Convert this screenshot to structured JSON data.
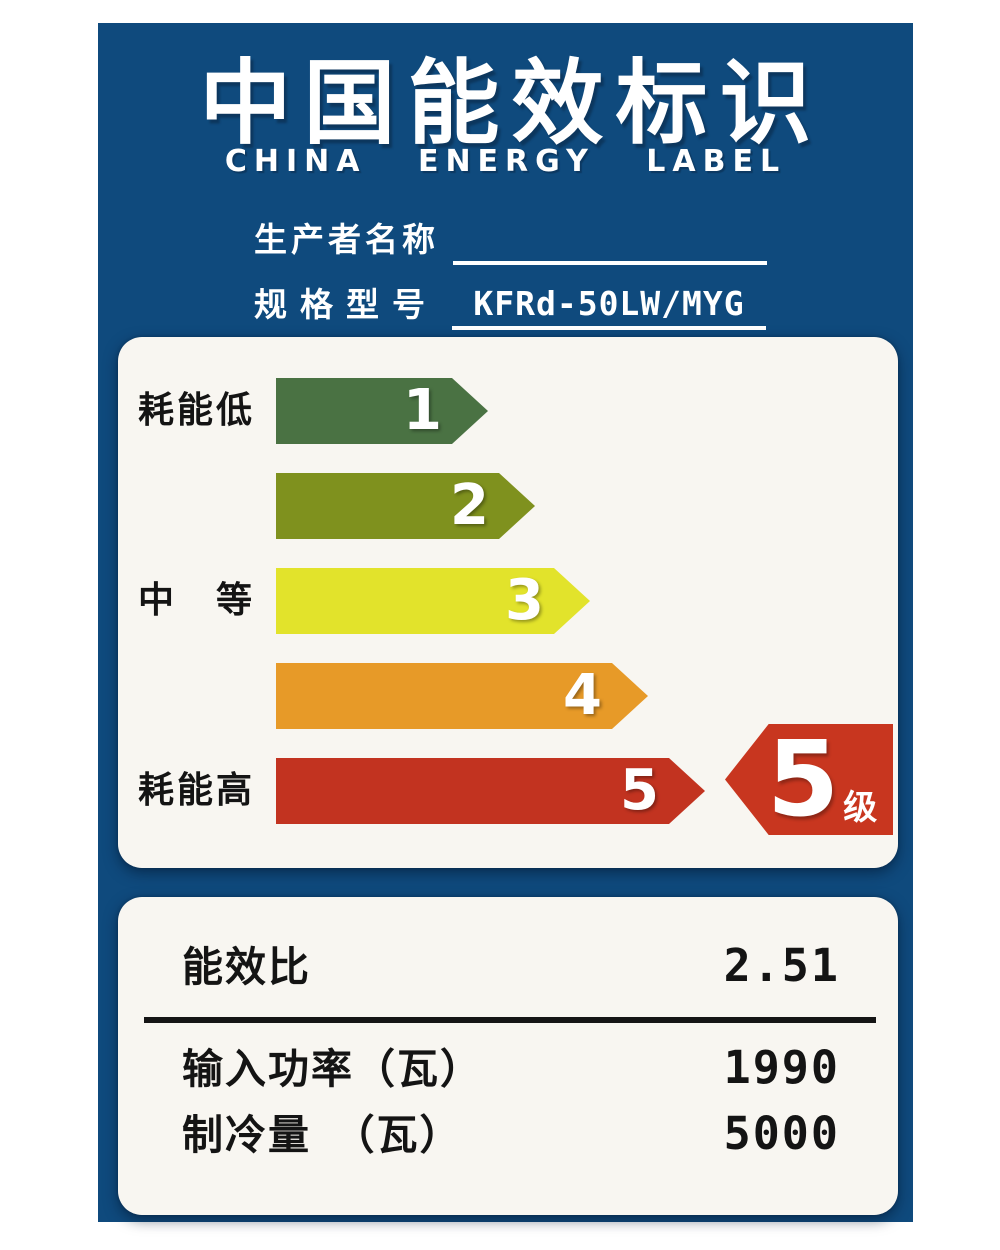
{
  "header": {
    "title_cn": "中国能效标识",
    "title_en": "CHINA ENERGY LABEL"
  },
  "form": {
    "producer_label": "生产者名称",
    "producer_value": "",
    "model_label": "规格型号",
    "model_value": "KFRd-50LW/MYG"
  },
  "scale": {
    "low_label": "耗能低",
    "mid_label": "中　等",
    "high_label": "耗能高",
    "grades": [
      {
        "grade": "1",
        "color": "#4A7243"
      },
      {
        "grade": "2",
        "color": "#7F911E"
      },
      {
        "grade": "3",
        "color": "#E2E32B"
      },
      {
        "grade": "4",
        "color": "#E79A28"
      },
      {
        "grade": "5",
        "color": "#C23320"
      }
    ],
    "rating": {
      "number": "5",
      "suffix": "级",
      "color": "#C8361F"
    }
  },
  "specs": [
    {
      "label": "能效比",
      "value": "2.51"
    },
    {
      "label": "输入功率（瓦）",
      "value": "1990"
    },
    {
      "label": "制冷量　（瓦）",
      "value": "5000"
    }
  ],
  "colors": {
    "background_blue": "#0F4A7D",
    "panel_white": "#F8F6F1",
    "text_black": "#141414",
    "text_white": "#FFFFFF"
  }
}
